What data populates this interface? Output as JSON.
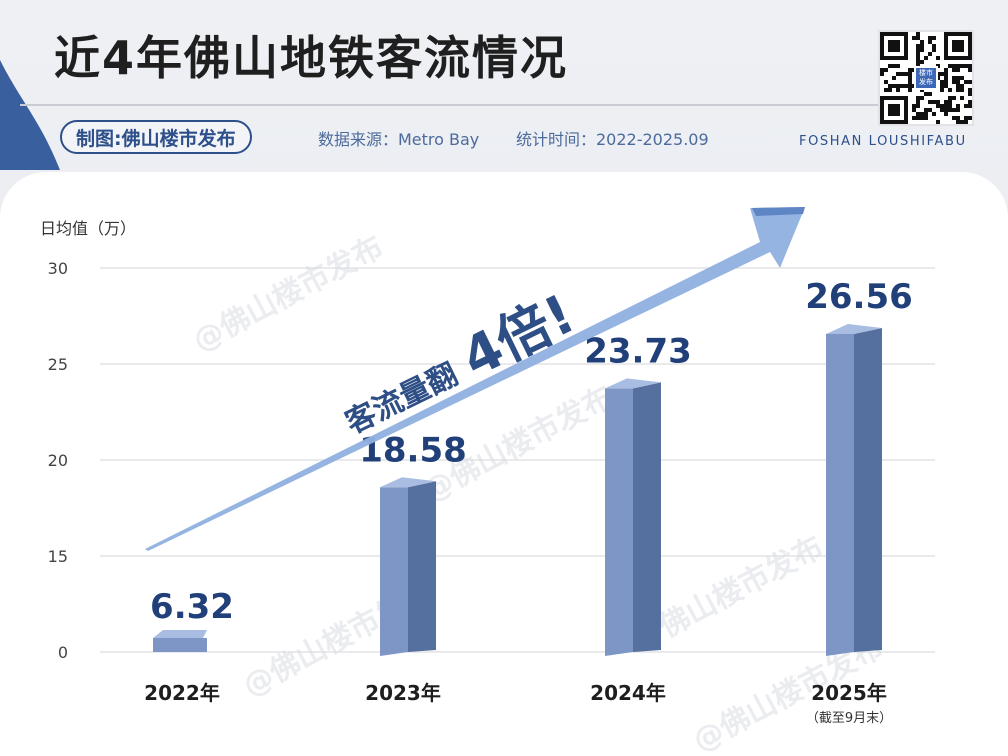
{
  "header": {
    "title": "近4年佛山地铁客流情况",
    "credit": "制图:佛山楼市发布",
    "source": "数据来源：Metro Bay",
    "period": "统计时间：2022-2025.09",
    "brand_en": "FOSHAN LOUSHIFABU",
    "qr_center_text": "楼市\n发布"
  },
  "arrow_annotation": {
    "text": "客流量翻",
    "emphasis": "4倍!"
  },
  "watermark": "@佛山楼市发布",
  "colors": {
    "bar_front": "#7e96c6",
    "bar_side": "#55709f",
    "bar_top": "#a9bde2",
    "arrow": "#8fb0df",
    "value_label": "#213f78",
    "brand": "#2d4f8a"
  },
  "chart_data": {
    "type": "bar",
    "title": "近4年佛山地铁客流情况",
    "ylabel": "日均值（万）",
    "xlabel": "",
    "ylim": [
      0,
      30
    ],
    "yticks": [
      0,
      15,
      20,
      25,
      30
    ],
    "grid": true,
    "categories": [
      "2022年",
      "2023年",
      "2024年",
      "2025年"
    ],
    "category_notes": [
      "",
      "",
      "",
      "（截至9月末）"
    ],
    "values": [
      6.32,
      18.58,
      23.73,
      26.56
    ],
    "value_labels": [
      "6.32",
      "18.58",
      "23.73",
      "26.56"
    ]
  }
}
